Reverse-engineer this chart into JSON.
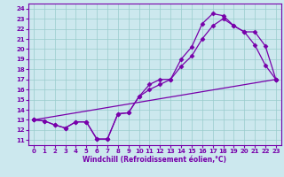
{
  "xlabel": "Windchill (Refroidissement éolien,°C)",
  "bg_color": "#cce8ee",
  "line_color": "#7700aa",
  "grid_color": "#99cccc",
  "xlim": [
    -0.5,
    23.5
  ],
  "ylim": [
    10.5,
    24.5
  ],
  "xticks": [
    0,
    1,
    2,
    3,
    4,
    5,
    6,
    7,
    8,
    9,
    10,
    11,
    12,
    13,
    14,
    15,
    16,
    17,
    18,
    19,
    20,
    21,
    22,
    23
  ],
  "yticks": [
    11,
    12,
    13,
    14,
    15,
    16,
    17,
    18,
    19,
    20,
    21,
    22,
    23,
    24
  ],
  "line1_x": [
    0,
    1,
    2,
    3,
    4,
    5,
    6,
    7,
    8,
    9,
    10,
    11,
    12,
    13,
    14,
    15,
    16,
    17,
    18,
    19,
    20,
    21,
    22,
    23
  ],
  "line1_y": [
    13.0,
    12.9,
    12.5,
    12.2,
    12.8,
    12.8,
    11.1,
    11.1,
    13.6,
    13.7,
    15.3,
    16.5,
    17.0,
    17.0,
    19.0,
    20.2,
    22.5,
    23.5,
    23.3,
    22.3,
    21.7,
    20.4,
    18.4,
    17.0
  ],
  "line2_x": [
    0,
    1,
    2,
    3,
    4,
    5,
    6,
    7,
    8,
    9,
    10,
    11,
    12,
    13,
    14,
    15,
    16,
    17,
    18,
    19,
    20,
    21,
    22,
    23
  ],
  "line2_y": [
    13.0,
    12.9,
    12.5,
    12.2,
    12.8,
    12.8,
    11.1,
    11.1,
    13.6,
    13.7,
    15.3,
    16.0,
    16.5,
    17.0,
    18.3,
    19.3,
    21.0,
    22.3,
    23.0,
    22.3,
    21.7,
    21.7,
    20.3,
    17.0
  ],
  "line3_x": [
    0,
    23
  ],
  "line3_y": [
    13.0,
    17.0
  ],
  "markersize": 2.5,
  "linewidth": 0.9,
  "tick_fontsize": 5,
  "xlabel_fontsize": 5.5
}
